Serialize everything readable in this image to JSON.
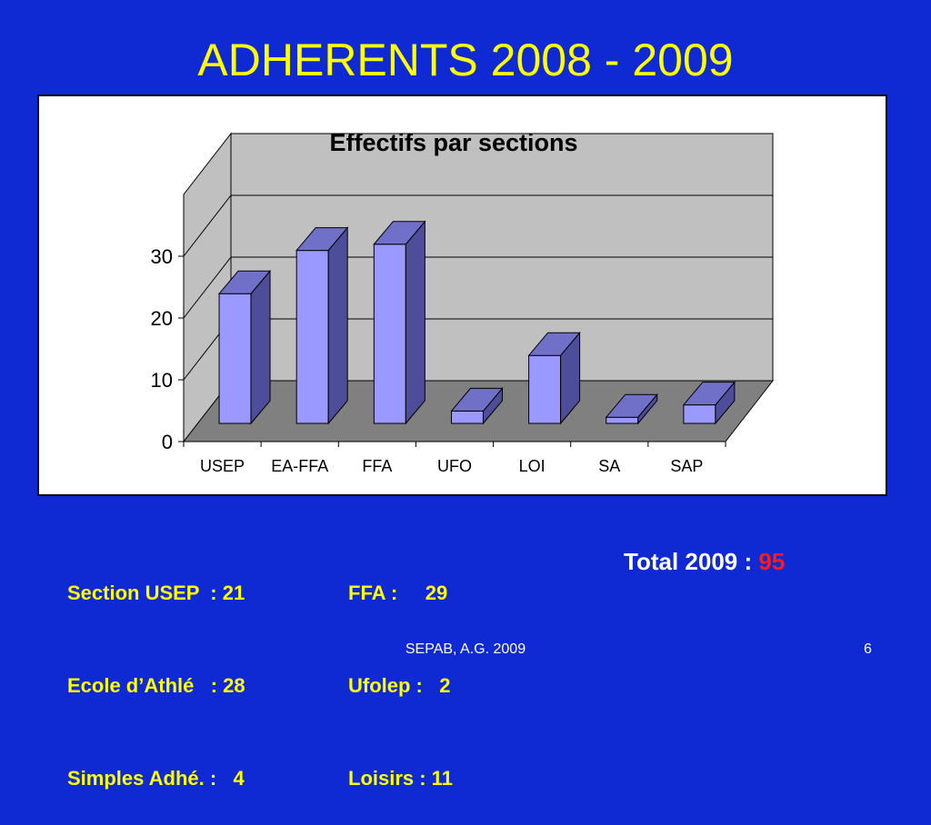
{
  "slide": {
    "title": "ADHERENTS 2008 - 2009"
  },
  "chart_data": {
    "type": "bar",
    "title": "Effectifs par sections",
    "categories": [
      "USEP",
      "EA-FFA",
      "FFA",
      "UFO",
      "LOI",
      "SA",
      "SAP"
    ],
    "values": [
      21,
      28,
      29,
      2,
      11,
      1,
      3
    ],
    "xlabel": "",
    "ylabel": "",
    "ylim": [
      0,
      30
    ],
    "yticks": [
      0,
      10,
      20,
      30
    ],
    "grid": true,
    "legend": "none",
    "style": "3d",
    "colors": {
      "bar_front": "#9999ff",
      "bar_side": "#4d4d99",
      "bar_top": "#7070c8",
      "back_wall": "#c0c0c0",
      "floor": "#808080",
      "panel": "#ffffff"
    }
  },
  "stats": {
    "left_lines": [
      "Section USEP  : 21",
      "Ecole d’Athlé   : 28",
      "Simples Adhé. :   4"
    ],
    "right_lines": [
      "FFA :     29",
      "Ufolep :   2",
      "Loisirs : 11"
    ]
  },
  "total": {
    "label": "Total 2009 : ",
    "value": "95"
  },
  "footer": {
    "text": "SEPAB, A.G. 2009",
    "page": "6"
  },
  "colors": {
    "background": "#0f2ad2",
    "title": "#ffff00",
    "stats_text": "#ffff00",
    "total_value": "#ff1a1a"
  }
}
